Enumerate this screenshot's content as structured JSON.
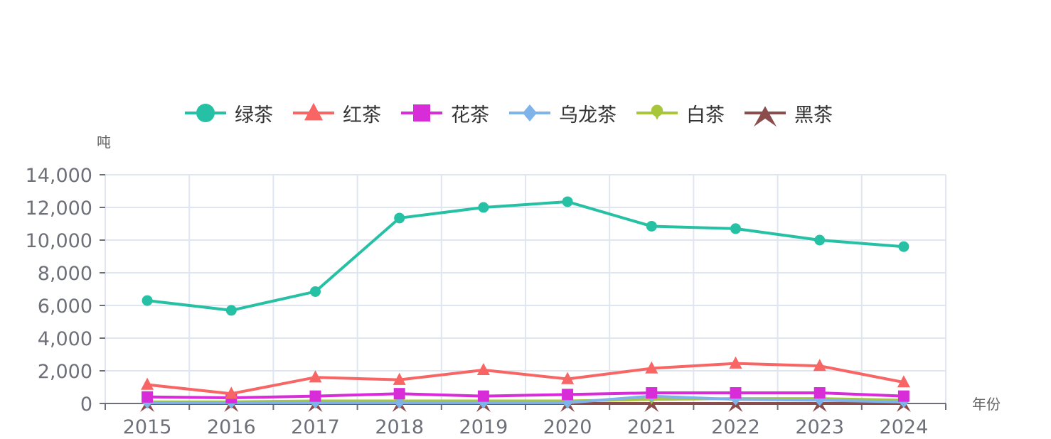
{
  "chart_data": {
    "type": "line",
    "title": "",
    "xlabel": "年份",
    "ylabel": "吨",
    "ylim": [
      0,
      14000
    ],
    "yticks": [
      0,
      2000,
      4000,
      6000,
      8000,
      10000,
      12000,
      14000
    ],
    "ytick_labels": [
      "0",
      "2,000",
      "4,000",
      "6,000",
      "8,000",
      "10,000",
      "12,000",
      "14,000"
    ],
    "categories": [
      "2015",
      "2016",
      "2017",
      "2018",
      "2019",
      "2020",
      "2021",
      "2022",
      "2023",
      "2024"
    ],
    "grid": true,
    "legend_position": "top-center",
    "series": [
      {
        "name": "绿茶",
        "color": "#26c0a4",
        "marker": "circle",
        "values": [
          6300,
          5700,
          6850,
          11350,
          12000,
          12350,
          10850,
          10700,
          10000,
          9600
        ]
      },
      {
        "name": "红茶",
        "color": "#f76565",
        "marker": "triangle",
        "values": [
          1150,
          600,
          1600,
          1450,
          2050,
          1500,
          2150,
          2450,
          2300,
          1300
        ]
      },
      {
        "name": "花茶",
        "color": "#d82cd9",
        "marker": "square",
        "values": [
          400,
          350,
          450,
          600,
          450,
          550,
          650,
          650,
          650,
          450
        ]
      },
      {
        "name": "乌龙茶",
        "color": "#7fb4ea",
        "marker": "diamond",
        "values": [
          50,
          50,
          50,
          50,
          50,
          50,
          450,
          250,
          200,
          100
        ]
      },
      {
        "name": "白茶",
        "color": "#a7c63a",
        "marker": "pin",
        "values": [
          100,
          100,
          150,
          150,
          150,
          150,
          250,
          300,
          300,
          200
        ]
      },
      {
        "name": "黑茶",
        "color": "#8b4c4c",
        "marker": "arrow",
        "values": [
          0,
          0,
          0,
          0,
          0,
          0,
          0,
          0,
          0,
          0
        ]
      }
    ]
  }
}
